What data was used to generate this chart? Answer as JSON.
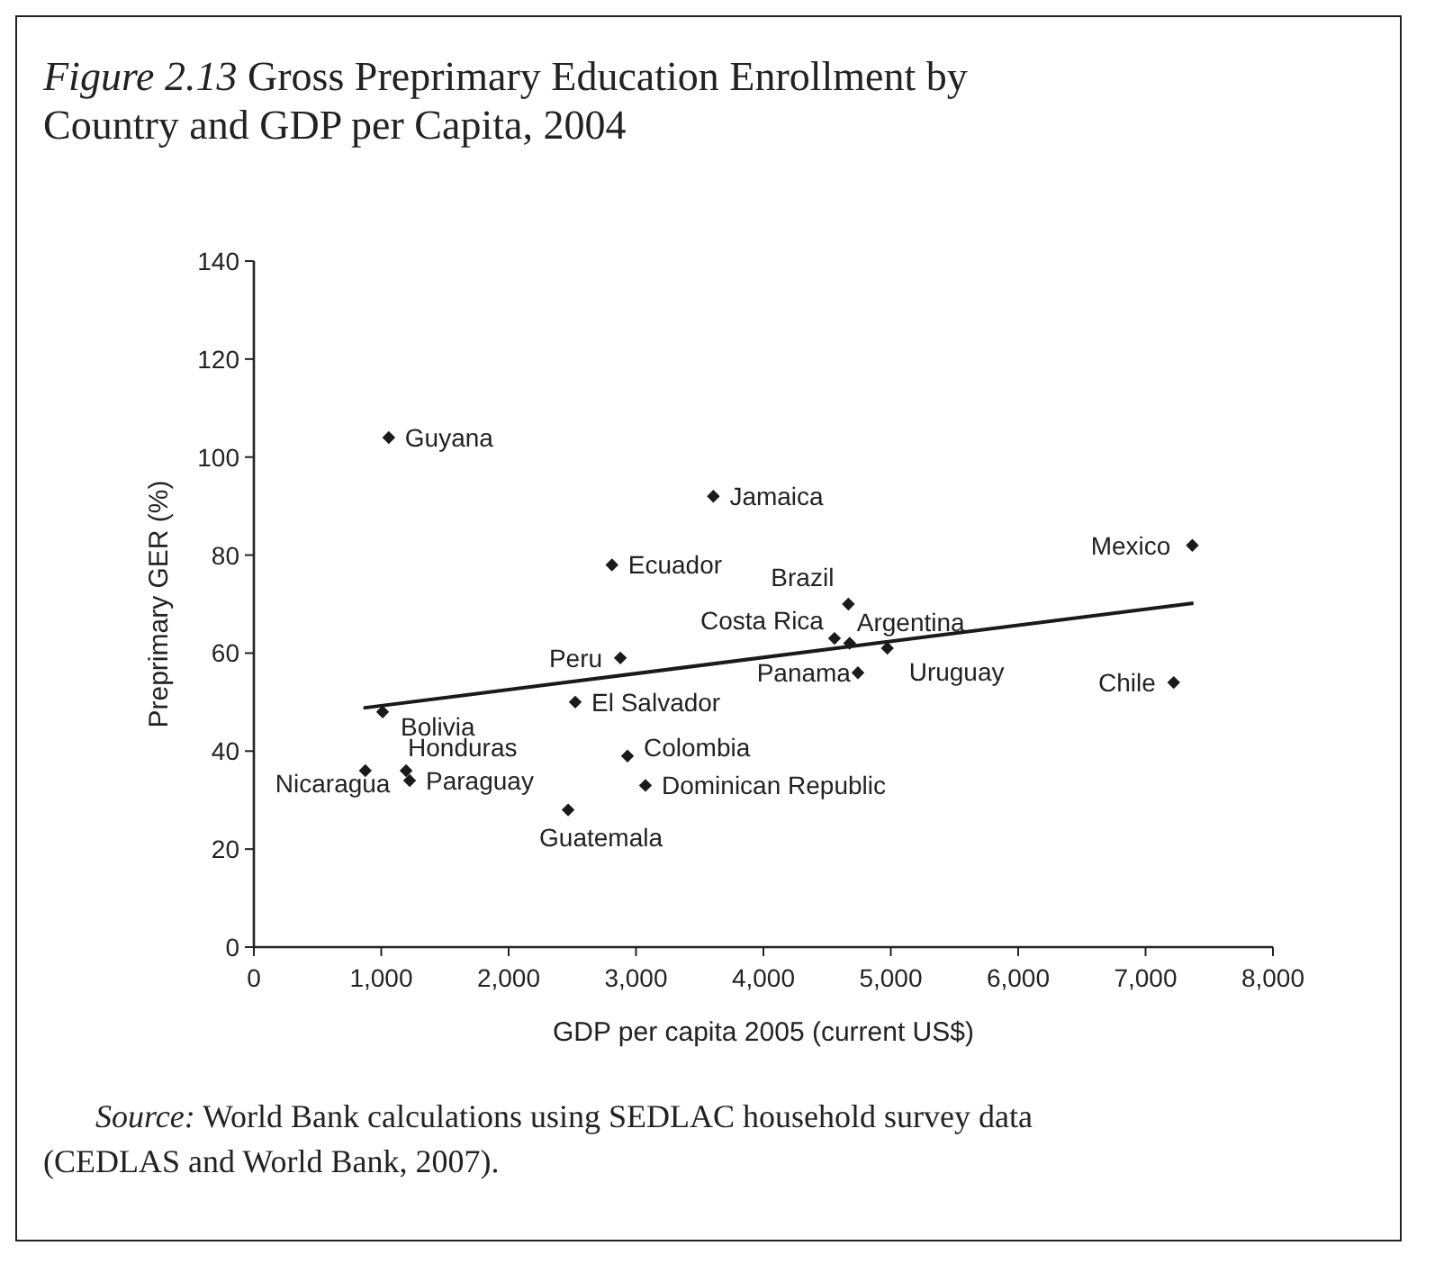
{
  "chart_data": {
    "type": "scatter",
    "title": "Figure 2.13 Gross Preprimary Education Enrollment by Country and GDP per Capita, 2004",
    "xlabel": "GDP per capita 2005 (current US$)",
    "ylabel": "Preprimary GER (%)",
    "xlim": [
      0,
      8000
    ],
    "xticks": [
      0,
      {
        "value": 1000,
        "label": "1,000"
      },
      {
        "value": 2000,
        "label": "2,000"
      },
      {
        "value": 3000,
        "label": "3,000"
      },
      {
        "value": 4000,
        "label": "4,000"
      },
      {
        "value": 5000,
        "label": "5,000"
      },
      {
        "value": 6000,
        "label": "6,000"
      },
      {
        "value": 7000,
        "label": "7,000"
      },
      {
        "value": 8000,
        "label": "8,000"
      }
    ],
    "ylim": [
      0,
      140
    ],
    "yticks": [
      0,
      20,
      40,
      60,
      80,
      100,
      120,
      140
    ],
    "grid": false,
    "marker": "diamond",
    "series": [
      {
        "type": "scatter",
        "color": "#1a1a1a",
        "x": [
          1059,
          2811,
          2877,
          2523,
          1011,
          875,
          1195,
          1223,
          2467,
          2933,
          3074,
          3607,
          7367,
          4667,
          4558,
          4677,
          4973,
          4742,
          7221
        ],
        "values": [
          104,
          78,
          59,
          50,
          48,
          36,
          36,
          34,
          28,
          39,
          33,
          92,
          82,
          70,
          63,
          62,
          61,
          56,
          54
        ]
      },
      {
        "type": "line",
        "color": "#1a1a1a",
        "line_style": "solid",
        "marker": "none",
        "x": [
          860,
          7376
        ],
        "values": [
          48.8,
          70.2
        ]
      }
    ],
    "annotations": [
      {
        "text": "Guyana",
        "x": 1059,
        "y": 104
      },
      {
        "text": "Ecuador",
        "x": 2811,
        "y": 78
      },
      {
        "text": "Peru",
        "x": 2877,
        "y": 59
      },
      {
        "text": "El Salvador",
        "x": 2523,
        "y": 50
      },
      {
        "text": "Bolivia",
        "x": 1011,
        "y": 48
      },
      {
        "text": "Nicaragua",
        "x": 875,
        "y": 36
      },
      {
        "text": "Honduras",
        "x": 1195,
        "y": 36
      },
      {
        "text": "Paraguay",
        "x": 1223,
        "y": 34
      },
      {
        "text": "Guatemala",
        "x": 2467,
        "y": 28
      },
      {
        "text": "Colombia",
        "x": 2933,
        "y": 39
      },
      {
        "text": "Dominican Republic",
        "x": 3074,
        "y": 33
      },
      {
        "text": "Jamaica",
        "x": 3607,
        "y": 92
      },
      {
        "text": "Mexico",
        "x": 7367,
        "y": 82
      },
      {
        "text": "Brazil",
        "x": 4667,
        "y": 70
      },
      {
        "text": "Costa Rica",
        "x": 4558,
        "y": 63
      },
      {
        "text": "Argentina",
        "x": 4677,
        "y": 62
      },
      {
        "text": "Uruguay",
        "x": 4973,
        "y": 61
      },
      {
        "text": "Panama",
        "x": 4742,
        "y": 56
      },
      {
        "text": "Chile",
        "x": 7221,
        "y": 54
      },
      "Source: World Bank calculations using SEDLAC household survey data (CEDLAS and World Bank, 2007)."
    ]
  }
}
